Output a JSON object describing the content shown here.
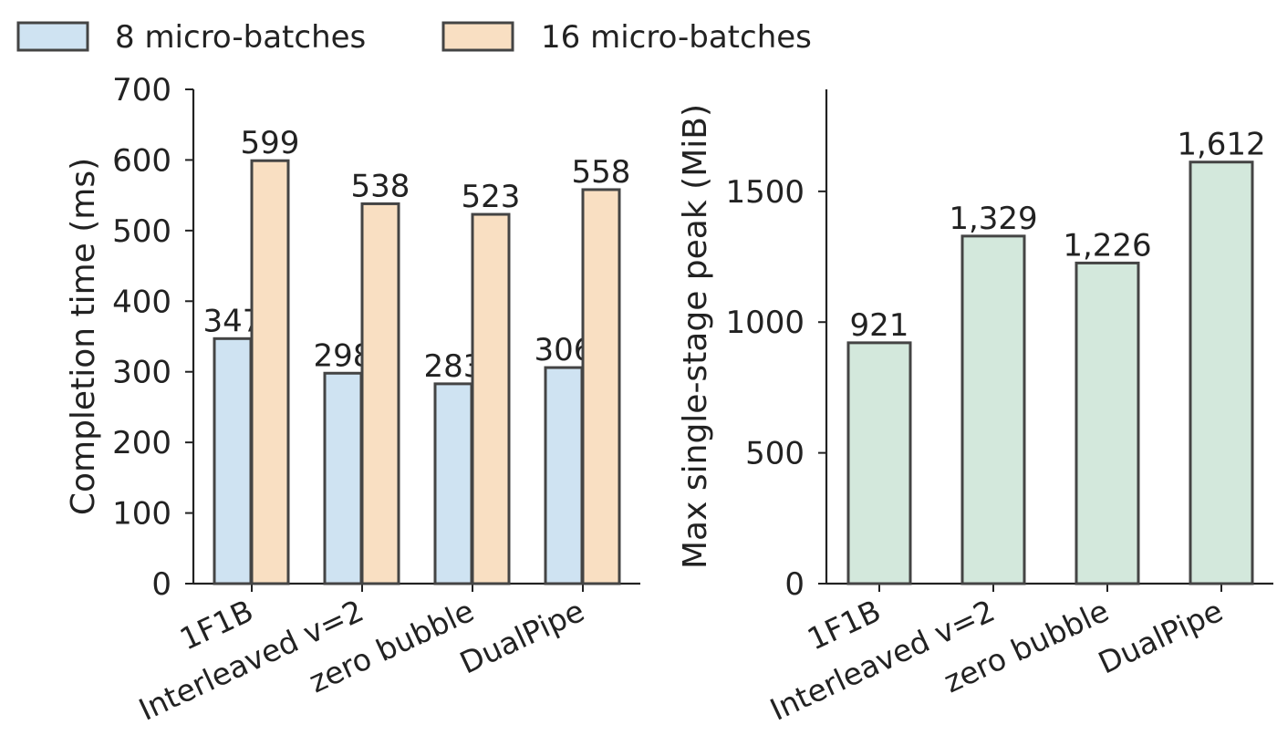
{
  "legend": {
    "items": [
      {
        "label": "8 micro-batches",
        "color": "#cfe3f2"
      },
      {
        "label": "16 micro-batches",
        "color": "#f9dfc2"
      }
    ]
  },
  "colors": {
    "edge": "#444444",
    "memory_bar": "#d3e8dc"
  },
  "chart_data": [
    {
      "type": "bar",
      "categories": [
        "1F1B",
        "Interleaved v=2",
        "zero bubble",
        "DualPipe"
      ],
      "series": [
        {
          "name": "8 micro-batches",
          "values": [
            347,
            298,
            283,
            306
          ],
          "labels": [
            "347",
            "298",
            "283",
            "306"
          ]
        },
        {
          "name": "16 micro-batches",
          "values": [
            599,
            538,
            523,
            558
          ],
          "labels": [
            "599",
            "538",
            "523",
            "558"
          ]
        }
      ],
      "ylabel": "Completion time (ms)",
      "ylim": [
        0,
        700
      ],
      "yticks": [
        0,
        100,
        200,
        300,
        400,
        500,
        600,
        700
      ],
      "grid": false
    },
    {
      "type": "bar",
      "categories": [
        "1F1B",
        "Interleaved v=2",
        "zero bubble",
        "DualPipe"
      ],
      "series": [
        {
          "values": [
            921,
            1329,
            1226,
            1612
          ],
          "labels": [
            "921",
            "1,329",
            "1,226",
            "1,612"
          ]
        }
      ],
      "ylabel": "Max single-stage peak (MiB)",
      "ylim": [
        0,
        1890
      ],
      "yticks": [
        0,
        500,
        1000,
        1500
      ],
      "grid": false
    }
  ]
}
